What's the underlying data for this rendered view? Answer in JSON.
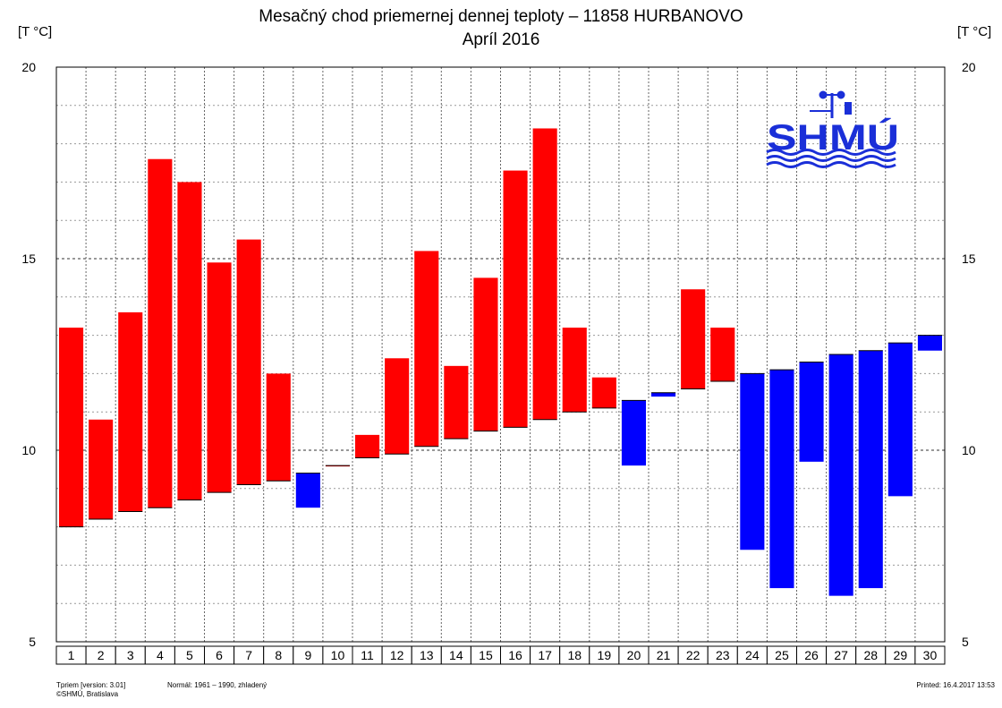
{
  "chart_data": {
    "type": "bar",
    "title": "Mesačný chod priemernej dennej teploty – 11858 HURBANOVO",
    "subtitle": "Apríl 2016",
    "ylabel_left": "[T °C]",
    "ylabel_right": "[T °C]",
    "ylim": [
      5,
      20
    ],
    "yticks": [
      "5",
      "10",
      "15",
      "20"
    ],
    "grid": true,
    "categories": [
      "1",
      "2",
      "3",
      "4",
      "5",
      "6",
      "7",
      "8",
      "9",
      "10",
      "11",
      "12",
      "13",
      "14",
      "15",
      "16",
      "17",
      "18",
      "19",
      "20",
      "21",
      "22",
      "23",
      "24",
      "25",
      "26",
      "27",
      "28",
      "29",
      "30"
    ],
    "series": [
      {
        "role": "daily mean temperature",
        "values": [
          13.2,
          10.8,
          13.6,
          17.6,
          17.0,
          14.9,
          15.5,
          12.0,
          8.5,
          9.6,
          10.4,
          12.4,
          15.2,
          12.2,
          14.5,
          17.3,
          18.4,
          13.2,
          11.9,
          9.6,
          11.4,
          14.2,
          13.2,
          7.4,
          6.4,
          9.7,
          6.2,
          6.4,
          8.8,
          12.6
        ]
      },
      {
        "role": "normal 1961 – 1990",
        "values": [
          8.0,
          8.2,
          8.4,
          8.5,
          8.7,
          8.9,
          9.1,
          9.2,
          9.4,
          9.6,
          9.8,
          9.9,
          10.1,
          10.3,
          10.5,
          10.6,
          10.8,
          11.0,
          11.1,
          11.3,
          11.5,
          11.6,
          11.8,
          12.0,
          12.1,
          12.3,
          12.5,
          12.6,
          12.8,
          13.0
        ]
      }
    ],
    "colors": {
      "above": "#ff0000",
      "below": "#0000ff"
    }
  },
  "logo": {
    "text": "SHMÚ"
  },
  "footer": {
    "version": "Tpriem [version: 3.01]",
    "copyright": "©SHMÚ, Bratislava",
    "normal": "Normál: 1961 – 1990, zhladený",
    "printed": "Printed: 16.4.2017  13:53"
  }
}
